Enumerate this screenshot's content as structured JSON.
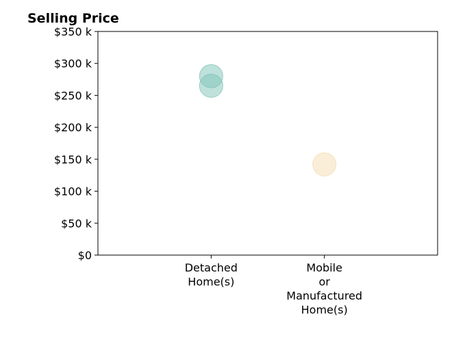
{
  "chart_data": {
    "type": "scatter",
    "title": "Selling Price",
    "xlabel": "",
    "ylabel": "",
    "categories": [
      [
        "Detached",
        "Home(s)"
      ],
      [
        "Mobile",
        "or",
        "Manufactured",
        "Home(s)"
      ]
    ],
    "ylim": [
      0,
      350000
    ],
    "yticks": [
      0,
      50000,
      100000,
      150000,
      200000,
      250000,
      300000,
      350000
    ],
    "ytick_labels": [
      "$0",
      "$50 k",
      "$100 k",
      "$150 k",
      "$200 k",
      "$250 k",
      "$300 k",
      "$350 k"
    ],
    "grid": false,
    "points": [
      {
        "category": 0,
        "y": 280000,
        "color": "#7fc4b8"
      },
      {
        "category": 0,
        "y": 265000,
        "color": "#7fc4b8"
      },
      {
        "category": 1,
        "y": 142000,
        "color": "#f5deb3"
      }
    ]
  }
}
